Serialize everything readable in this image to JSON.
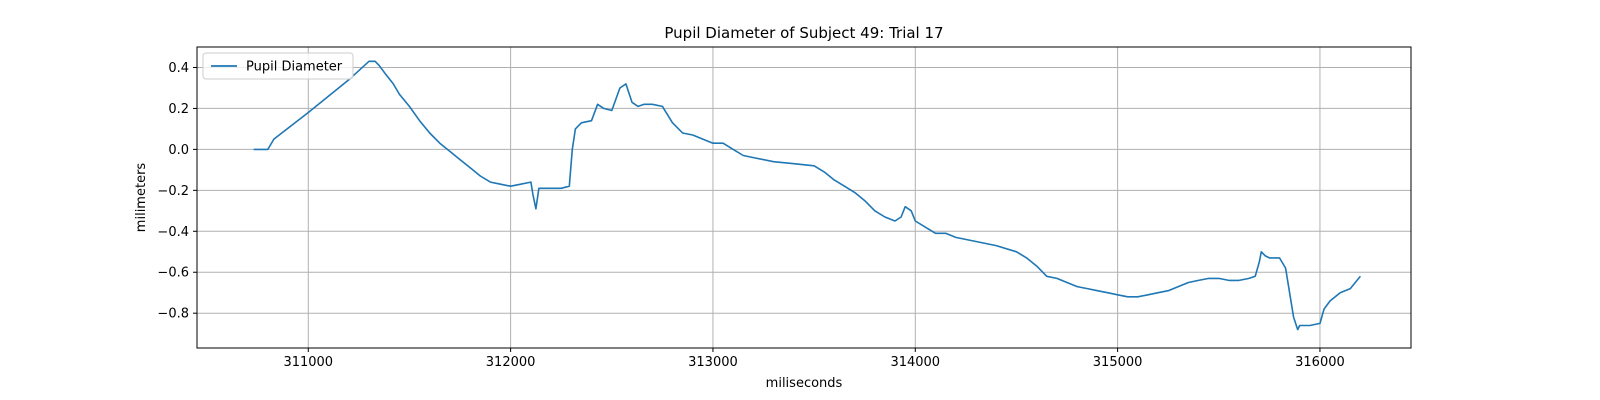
{
  "chart_data": {
    "type": "line",
    "title": "Pupil Diameter of Subject 49: Trial 17",
    "xlabel": "miliseconds",
    "ylabel": "milimeters",
    "xlim": [
      310450,
      316450
    ],
    "ylim": [
      -0.97,
      0.5
    ],
    "xticks": [
      311000,
      312000,
      313000,
      314000,
      315000,
      316000
    ],
    "yticks": [
      0.4,
      0.2,
      0.0,
      -0.2,
      -0.4,
      -0.6,
      -0.8
    ],
    "ytick_labels": [
      "0.4",
      "0.2",
      "0.0",
      "−0.2",
      "−0.4",
      "−0.6",
      "−0.8"
    ],
    "grid": true,
    "legend_position": "top-left",
    "colors": {
      "line": "#1f77b4",
      "grid": "#b0b0b0",
      "axis": "#000000"
    },
    "series": [
      {
        "name": "Pupil Diameter",
        "x": [
          310730,
          310800,
          310830,
          311000,
          311200,
          311300,
          311330,
          311350,
          311380,
          311420,
          311450,
          311500,
          311550,
          311600,
          311650,
          311700,
          311750,
          311800,
          311850,
          311900,
          311950,
          312000,
          312050,
          312100,
          312110,
          312125,
          312140,
          312200,
          312250,
          312290,
          312305,
          312320,
          312350,
          312400,
          312430,
          312460,
          312500,
          312540,
          312570,
          312600,
          312630,
          312660,
          312700,
          312750,
          312800,
          312830,
          312850,
          312900,
          312950,
          313000,
          313050,
          313100,
          313150,
          313200,
          313300,
          313400,
          313500,
          313550,
          313600,
          313650,
          313700,
          313750,
          313800,
          313850,
          313900,
          313930,
          313950,
          313980,
          314000,
          314050,
          314100,
          314150,
          314200,
          314300,
          314400,
          314500,
          314550,
          314600,
          314650,
          314700,
          314750,
          314800,
          314850,
          314900,
          314950,
          315000,
          315050,
          315100,
          315150,
          315200,
          315250,
          315300,
          315350,
          315400,
          315450,
          315500,
          315550,
          315600,
          315650,
          315680,
          315700,
          315710,
          315730,
          315750,
          315800,
          315830,
          315850,
          315870,
          315890,
          315900,
          315950,
          316000,
          316020,
          316050,
          316100,
          316150,
          316200
        ],
        "y": [
          0.0,
          0.0,
          0.05,
          0.18,
          0.34,
          0.43,
          0.43,
          0.41,
          0.37,
          0.32,
          0.27,
          0.21,
          0.14,
          0.08,
          0.03,
          -0.01,
          -0.05,
          -0.09,
          -0.13,
          -0.16,
          -0.17,
          -0.18,
          -0.17,
          -0.16,
          -0.22,
          -0.29,
          -0.19,
          -0.19,
          -0.19,
          -0.18,
          0.0,
          0.1,
          0.13,
          0.14,
          0.22,
          0.2,
          0.19,
          0.3,
          0.32,
          0.23,
          0.21,
          0.22,
          0.22,
          0.21,
          0.13,
          0.1,
          0.08,
          0.07,
          0.05,
          0.03,
          0.03,
          0.0,
          -0.03,
          -0.04,
          -0.06,
          -0.07,
          -0.08,
          -0.11,
          -0.15,
          -0.18,
          -0.21,
          -0.25,
          -0.3,
          -0.33,
          -0.35,
          -0.33,
          -0.28,
          -0.3,
          -0.35,
          -0.38,
          -0.41,
          -0.41,
          -0.43,
          -0.45,
          -0.47,
          -0.5,
          -0.53,
          -0.57,
          -0.62,
          -0.63,
          -0.65,
          -0.67,
          -0.68,
          -0.69,
          -0.7,
          -0.71,
          -0.72,
          -0.72,
          -0.71,
          -0.7,
          -0.69,
          -0.67,
          -0.65,
          -0.64,
          -0.63,
          -0.63,
          -0.64,
          -0.64,
          -0.63,
          -0.62,
          -0.55,
          -0.5,
          -0.52,
          -0.53,
          -0.53,
          -0.58,
          -0.7,
          -0.82,
          -0.88,
          -0.86,
          -0.86,
          -0.85,
          -0.78,
          -0.74,
          -0.7,
          -0.68,
          -0.62
        ]
      }
    ]
  }
}
